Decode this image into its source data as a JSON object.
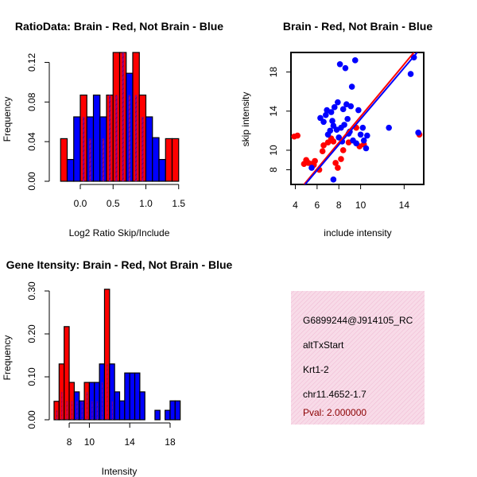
{
  "chart_data": [
    {
      "type": "bar",
      "title": "RatioData: Brain - Red, Not Brain - Blue",
      "xlabel": "Log2 Ratio Skip/Include",
      "ylabel": "Frequency",
      "xlim": [
        -0.4,
        1.6
      ],
      "ylim": [
        0,
        0.13
      ],
      "xticks": [
        "0.0",
        "0.5",
        "1.0",
        "1.5"
      ],
      "yticks": [
        "0.00",
        "0.04",
        "0.08",
        "0.12"
      ],
      "bin_width": 0.1,
      "bin_starts": [
        -0.4,
        -0.3,
        -0.2,
        -0.1,
        0.0,
        0.1,
        0.2,
        0.3,
        0.4,
        0.5,
        0.6,
        0.7,
        0.8,
        0.9,
        1.0,
        1.1,
        1.2,
        1.3,
        1.4
      ],
      "series": [
        {
          "name": "Brain",
          "color": "#ff0000",
          "values": [
            0.0,
            0.043,
            0.0,
            0.0,
            0.087,
            0.043,
            0.0,
            0.043,
            0.087,
            0.13,
            0.13,
            0.087,
            0.13,
            0.087,
            0.0,
            0.0,
            0.0,
            0.043,
            0.043
          ]
        },
        {
          "name": "Not Brain",
          "color": "#0000ff",
          "values": [
            0.0,
            0.0,
            0.022,
            0.065,
            0.065,
            0.065,
            0.087,
            0.065,
            0.087,
            0.087,
            0.13,
            0.109,
            0.087,
            0.065,
            0.065,
            0.044,
            0.022,
            0.0,
            0.0
          ]
        }
      ]
    },
    {
      "type": "scatter",
      "title": "Brain - Red, Not Brain - Blue",
      "xlabel": "include intensity",
      "ylabel": "skip intensity",
      "xlim": [
        3.6,
        15.8
      ],
      "ylim": [
        6.5,
        20
      ],
      "xticks": [
        "4",
        "6",
        "8",
        "10",
        "14"
      ],
      "yticks": [
        "8",
        "10",
        "14",
        "18"
      ],
      "series": [
        {
          "name": "Brain",
          "color": "#ff0000",
          "points": [
            [
              3.9,
              11.4
            ],
            [
              4.2,
              11.5
            ],
            [
              4.8,
              8.6
            ],
            [
              5.0,
              9.0
            ],
            [
              5.2,
              8.7
            ],
            [
              5.5,
              8.6
            ],
            [
              5.7,
              8.5
            ],
            [
              5.8,
              8.9
            ],
            [
              6.2,
              8.0
            ],
            [
              6.5,
              9.9
            ],
            [
              6.6,
              10.5
            ],
            [
              7.0,
              10.8
            ],
            [
              7.3,
              11.2
            ],
            [
              7.5,
              10.9
            ],
            [
              7.7,
              8.7
            ],
            [
              7.9,
              8.2
            ],
            [
              8.2,
              9.1
            ],
            [
              8.4,
              10.0
            ],
            [
              8.9,
              10.8
            ],
            [
              9.6,
              12.3
            ],
            [
              9.9,
              10.4
            ],
            [
              10.3,
              10.6
            ],
            [
              15.4,
              11.6
            ]
          ],
          "fit": [
            [
              4.8,
              6.5
            ],
            [
              14.9,
              20.0
            ]
          ]
        },
        {
          "name": "Not Brain",
          "color": "#0000ff",
          "points": [
            [
              6.3,
              13.3
            ],
            [
              6.6,
              12.9
            ],
            [
              6.8,
              13.6
            ],
            [
              6.9,
              14.1
            ],
            [
              7.0,
              11.6
            ],
            [
              7.2,
              12.0
            ],
            [
              7.3,
              13.9
            ],
            [
              7.4,
              13.0
            ],
            [
              7.5,
              12.5
            ],
            [
              7.6,
              14.4
            ],
            [
              7.8,
              12.1
            ],
            [
              7.9,
              14.9
            ],
            [
              8.0,
              11.3
            ],
            [
              8.1,
              18.8
            ],
            [
              8.2,
              12.3
            ],
            [
              8.3,
              10.9
            ],
            [
              8.4,
              14.2
            ],
            [
              8.5,
              12.6
            ],
            [
              8.6,
              18.4
            ],
            [
              8.7,
              14.7
            ],
            [
              8.8,
              13.2
            ],
            [
              8.9,
              11.7
            ],
            [
              9.0,
              11.9
            ],
            [
              9.1,
              14.5
            ],
            [
              9.2,
              16.5
            ],
            [
              9.3,
              11.0
            ],
            [
              9.5,
              19.2
            ],
            [
              9.6,
              10.7
            ],
            [
              9.8,
              14.1
            ],
            [
              10.0,
              11.6
            ],
            [
              10.2,
              12.3
            ],
            [
              10.3,
              11.0
            ],
            [
              10.5,
              10.2
            ],
            [
              10.6,
              11.5
            ],
            [
              12.6,
              12.3
            ],
            [
              14.6,
              17.8
            ],
            [
              14.9,
              19.5
            ],
            [
              15.3,
              11.8
            ],
            [
              7.5,
              7.0
            ],
            [
              5.5,
              8.2
            ]
          ],
          "fit": [
            [
              4.9,
              6.5
            ],
            [
              15.2,
              20.0
            ]
          ]
        }
      ]
    },
    {
      "type": "bar",
      "title": "Gene Itensity: Brain - Red, Not Brain - Blue",
      "xlabel": "Intensity",
      "ylabel": "Frequency",
      "xlim": [
        6.5,
        19.5
      ],
      "ylim": [
        0,
        0.3
      ],
      "xticks": [
        "8",
        "10",
        "14",
        "18"
      ],
      "yticks": [
        "0.00",
        "0.10",
        "0.20",
        "0.30"
      ],
      "bin_width": 0.5,
      "bin_starts": [
        6.5,
        7.0,
        7.5,
        8.0,
        8.5,
        9.0,
        9.5,
        10.0,
        10.5,
        11.0,
        11.5,
        12.0,
        12.5,
        13.0,
        13.5,
        14.0,
        14.5,
        15.0,
        15.5,
        16.0,
        16.5,
        17.0,
        17.5,
        18.0,
        18.5,
        19.0
      ],
      "series": [
        {
          "name": "Brain",
          "color": "#ff0000",
          "values": [
            0.043,
            0.13,
            0.217,
            0.087,
            0.043,
            0.043,
            0.087,
            0.043,
            0.043,
            0.087,
            0.304,
            0.043,
            0.0,
            0.0,
            0.0,
            0.0,
            0.0,
            0.0,
            0.0,
            0.0,
            0.0,
            0.0,
            0.0,
            0.0,
            0.0,
            0.0
          ]
        },
        {
          "name": "Not Brain",
          "color": "#0000ff",
          "values": [
            0.022,
            0.065,
            0.044,
            0.044,
            0.065,
            0.044,
            0.065,
            0.087,
            0.087,
            0.13,
            0.13,
            0.13,
            0.065,
            0.044,
            0.109,
            0.109,
            0.109,
            0.065,
            0.0,
            0.0,
            0.022,
            0.0,
            0.022,
            0.044,
            0.044,
            0.0
          ]
        }
      ]
    }
  ],
  "info_panel": {
    "bg_color": "#f4cfe0",
    "probe": "G6899244@J914105_RC",
    "event_type": "altTxStart",
    "gene": "Krt1-2",
    "location": "chr11.4652-1.7",
    "pval": "Pval: 2.000000",
    "pval_color": "#8b0000"
  },
  "colors": {
    "brain": "#ff0000",
    "not_brain": "#0000ff",
    "overlap": "#8b008b"
  }
}
